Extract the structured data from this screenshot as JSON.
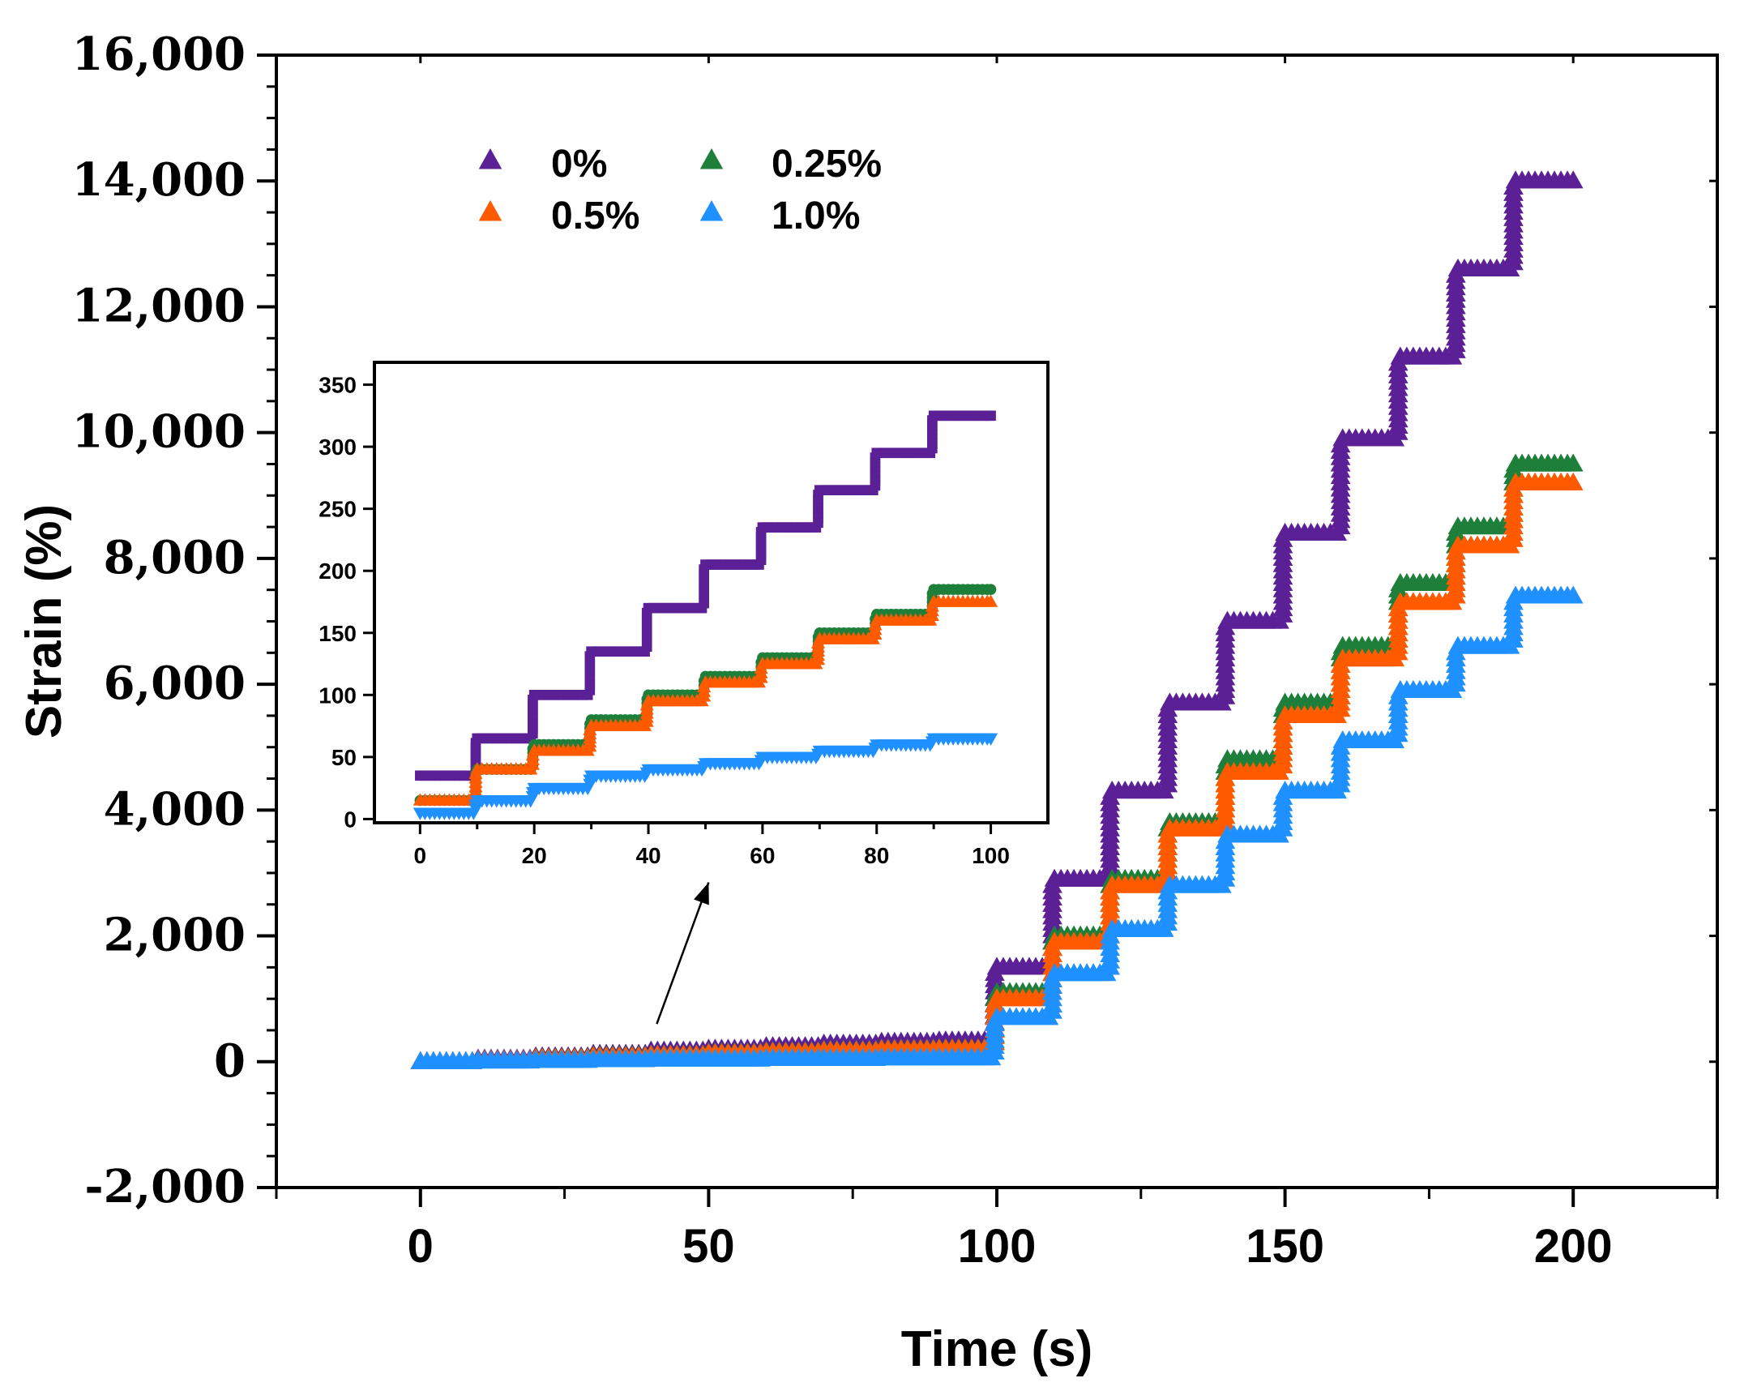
{
  "chart_data": [
    {
      "type": "scatter",
      "title": "",
      "xlabel": "Time (s)",
      "ylabel": "Strain (%)",
      "xlim": [
        -25,
        225
      ],
      "ylim": [
        -2000,
        16000
      ],
      "xticks": [
        0,
        50,
        100,
        150,
        200
      ],
      "xtick_labels": [
        "0",
        "50",
        "100",
        "150",
        "200"
      ],
      "yticks": [
        -2000,
        0,
        2000,
        4000,
        6000,
        8000,
        10000,
        12000,
        14000,
        16000
      ],
      "ytick_labels": [
        "-2,000",
        "0",
        "2,000",
        "4,000",
        "6,000",
        "8,000",
        "10,000",
        "12,000",
        "14,000",
        "16,000"
      ],
      "grid": false,
      "legend_position": "top-left",
      "marker": "triangle-up",
      "series": [
        {
          "name": "0%",
          "color": "#5b1f96",
          "step_times": [
            0,
            10,
            20,
            30,
            40,
            50,
            60,
            70,
            80,
            90,
            100,
            110,
            120,
            130,
            140,
            150,
            160,
            170,
            180,
            190,
            200
          ],
          "values": [
            0,
            40,
            80,
            120,
            170,
            200,
            240,
            280,
            310,
            330,
            1500,
            2900,
            4300,
            5700,
            7000,
            8400,
            9900,
            11200,
            12600,
            14000,
            14000
          ]
        },
        {
          "name": "0.25%",
          "color": "#1e7f3a",
          "step_times": [
            0,
            10,
            20,
            30,
            40,
            50,
            60,
            70,
            80,
            90,
            100,
            110,
            120,
            130,
            140,
            150,
            160,
            170,
            180,
            190,
            200
          ],
          "values": [
            0,
            20,
            60,
            90,
            110,
            140,
            160,
            180,
            200,
            210,
            1100,
            2000,
            2900,
            3800,
            4800,
            5700,
            6600,
            7600,
            8500,
            9500,
            9500
          ]
        },
        {
          "name": "0.5%",
          "color": "#ff5a00",
          "step_times": [
            0,
            10,
            20,
            30,
            40,
            50,
            60,
            70,
            80,
            90,
            100,
            110,
            120,
            130,
            140,
            150,
            160,
            170,
            180,
            190,
            200
          ],
          "values": [
            0,
            20,
            50,
            80,
            100,
            130,
            150,
            170,
            190,
            200,
            1000,
            1900,
            2800,
            3700,
            4600,
            5500,
            6400,
            7300,
            8200,
            9200,
            9200
          ]
        },
        {
          "name": "1.0%",
          "color": "#1e90ff",
          "step_times": [
            0,
            10,
            20,
            30,
            40,
            50,
            60,
            70,
            80,
            90,
            100,
            110,
            120,
            130,
            140,
            150,
            160,
            170,
            180,
            190,
            200
          ],
          "values": [
            0,
            10,
            20,
            30,
            40,
            40,
            50,
            50,
            60,
            60,
            700,
            1400,
            2100,
            2800,
            3600,
            4300,
            5100,
            5900,
            6600,
            7400,
            7400
          ]
        }
      ],
      "annotations": [
        {
          "type": "arrow",
          "from_data": [
            41,
            600
          ],
          "to_data": [
            50,
            2850
          ],
          "note": "points to inset"
        }
      ]
    },
    {
      "type": "scatter",
      "title": "inset",
      "xlabel": "",
      "ylabel": "",
      "xlim": [
        -8,
        110
      ],
      "ylim": [
        -3,
        368
      ],
      "xticks": [
        0,
        20,
        40,
        60,
        80,
        100
      ],
      "xtick_labels": [
        "0",
        "20",
        "40",
        "60",
        "80",
        "100"
      ],
      "yticks": [
        0,
        50,
        100,
        150,
        200,
        250,
        300,
        350
      ],
      "ytick_labels": [
        "0",
        "50",
        "100",
        "150",
        "200",
        "250",
        "300",
        "350"
      ],
      "grid": false,
      "series": [
        {
          "name": "0%",
          "color": "#5b1f96",
          "marker": "square",
          "step_times": [
            0,
            10,
            20,
            30,
            40,
            50,
            60,
            70,
            80,
            90,
            100
          ],
          "values": [
            35,
            65,
            100,
            135,
            170,
            205,
            235,
            265,
            295,
            325,
            325
          ]
        },
        {
          "name": "0.25%",
          "color": "#1e7f3a",
          "marker": "circle",
          "step_times": [
            0,
            10,
            20,
            30,
            40,
            50,
            60,
            70,
            80,
            90,
            100
          ],
          "values": [
            15,
            40,
            60,
            80,
            100,
            115,
            130,
            150,
            165,
            185,
            185
          ]
        },
        {
          "name": "0.5%",
          "color": "#ff5a00",
          "marker": "triangle-up",
          "step_times": [
            0,
            10,
            20,
            30,
            40,
            50,
            60,
            70,
            80,
            90,
            100
          ],
          "values": [
            15,
            40,
            55,
            75,
            95,
            110,
            125,
            145,
            160,
            175,
            175
          ]
        },
        {
          "name": "1.0%",
          "color": "#1e90ff",
          "marker": "triangle-down",
          "step_times": [
            0,
            10,
            20,
            30,
            40,
            50,
            60,
            70,
            80,
            90,
            100
          ],
          "values": [
            5,
            15,
            25,
            35,
            40,
            45,
            50,
            55,
            60,
            65,
            65
          ]
        }
      ]
    }
  ],
  "legend": {
    "items": [
      {
        "label": "0%",
        "color": "#5b1f96"
      },
      {
        "label": "0.25%",
        "color": "#1e7f3a"
      },
      {
        "label": "0.5%",
        "color": "#ff5a00"
      },
      {
        "label": "1.0%",
        "color": "#1e90ff"
      }
    ]
  }
}
